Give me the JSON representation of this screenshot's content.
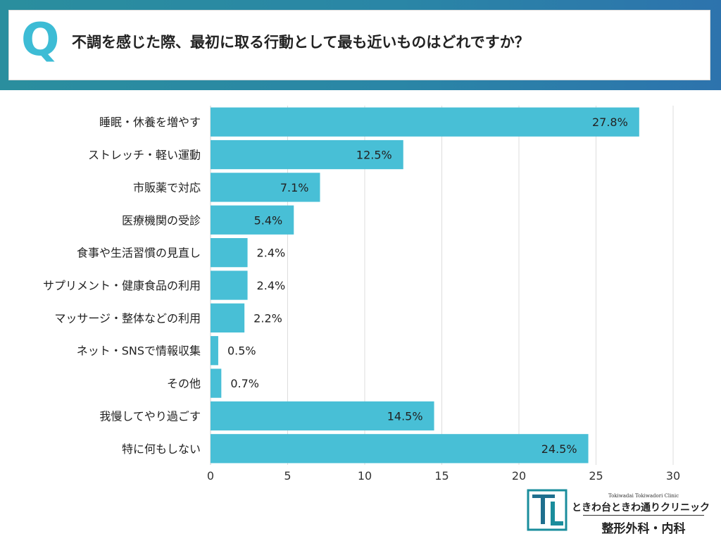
{
  "header": {
    "q_mark": "Q",
    "question": "不調を感じた際、最初に取る行動として最も近いものはどれですか？"
  },
  "chart_data": {
    "type": "bar",
    "orientation": "horizontal",
    "title": "",
    "xlabel": "",
    "ylabel": "",
    "categories": [
      "睡眠・休養を増やす",
      "ストレッチ・軽い運動",
      "市販薬で対応",
      "医療機関の受診",
      "食事や生活習慣の見直し",
      "サプリメント・健康食品の利用",
      "マッサージ・整体などの利用",
      "ネット・SNSで情報収集",
      "その他",
      "我慢してやり過ごす",
      "特に何もしない"
    ],
    "values": [
      27.8,
      12.5,
      7.1,
      5.4,
      2.4,
      2.4,
      2.2,
      0.5,
      0.7,
      14.5,
      24.5
    ],
    "value_labels": [
      "27.8%",
      "12.5%",
      "7.1%",
      "5.4%",
      "2.4%",
      "2.4%",
      "2.2%",
      "0.5%",
      "0.7%",
      "14.5%",
      "24.5%"
    ],
    "xlim": [
      0,
      30
    ],
    "xticks": [
      0,
      5,
      10,
      15,
      20,
      25,
      30
    ],
    "grid": true,
    "legend": "none",
    "bar_color": "#48bfd6"
  },
  "logo": {
    "subtitle": "Tokiwadai Tokiwadori Clinic",
    "name": "ときわ台ときわ通りクリニック",
    "department": "整形外科・内科",
    "icon": "tt-monogram-icon"
  }
}
